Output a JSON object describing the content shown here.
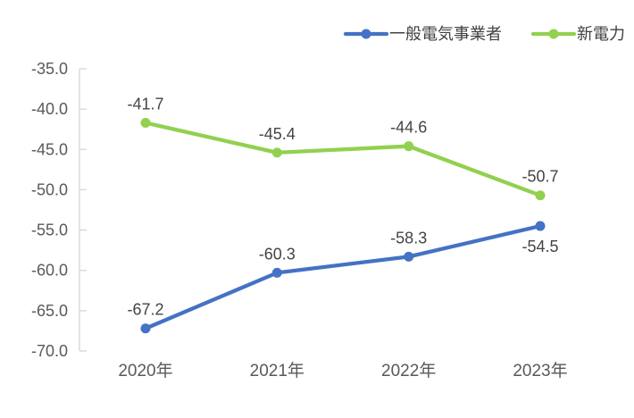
{
  "chart_data": {
    "type": "line",
    "title": "",
    "categories": [
      "2020年",
      "2021年",
      "2022年",
      "2023年"
    ],
    "series": [
      {
        "name": "一般電気事業者",
        "color": "#4472C4",
        "values": [
          -67.2,
          -60.3,
          -58.3,
          -54.5
        ],
        "labels": [
          "-67.2",
          "-60.3",
          "-58.3",
          "-54.5"
        ],
        "label_positions": [
          "above",
          "above",
          "above",
          "below"
        ]
      },
      {
        "name": "新電力",
        "color": "#92D050",
        "values": [
          -41.7,
          -45.4,
          -44.6,
          -50.7
        ],
        "labels": [
          "-41.7",
          "-45.4",
          "-44.6",
          "-50.7"
        ],
        "label_positions": [
          "above",
          "above",
          "above",
          "above"
        ]
      }
    ],
    "y_axis": {
      "min": -70,
      "max": -35,
      "step": 5,
      "tick_labels": [
        "-35.0",
        "-40.0",
        "-45.0",
        "-50.0",
        "-55.0",
        "-60.0",
        "-65.0",
        "-70.0"
      ]
    },
    "x_axis": {
      "tick_labels": [
        "2020年",
        "2021年",
        "2022年",
        "2023年"
      ]
    },
    "legend": {
      "position": "top-right",
      "items": [
        {
          "label": "一般電気事業者",
          "color": "#4472C4"
        },
        {
          "label": "新電力",
          "color": "#92D050"
        }
      ]
    },
    "grid": false,
    "colors": {
      "axis_line": "#D9D9D9",
      "axis_text": "#595959",
      "data_label_text": "#444444",
      "legend_text": "#404040",
      "background": "#FFFFFF"
    }
  }
}
